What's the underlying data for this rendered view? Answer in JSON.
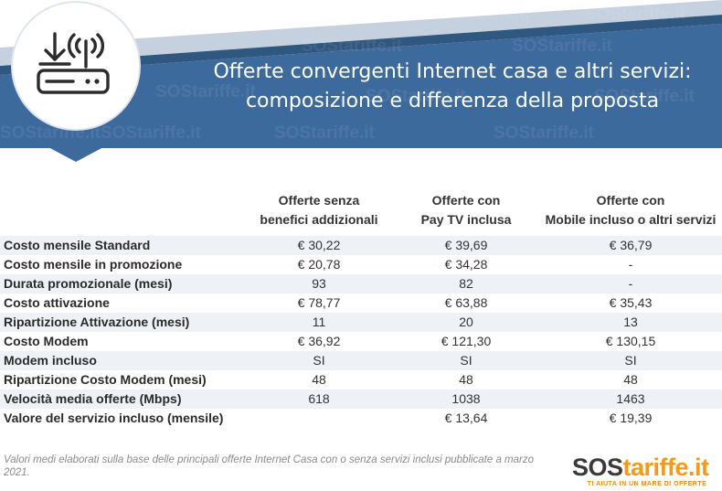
{
  "header": {
    "title_line1": "Offerte convergenti Internet casa e altri servizi:",
    "title_line2": "composizione e differenza della proposta",
    "watermark": "SOStariffe.it",
    "icon": "router-download-icon",
    "colors": {
      "banner": "#3d6a9c",
      "stripe_light": "#c5d1de",
      "stripe_dark": "#30577f"
    }
  },
  "columns": [
    {
      "line1": "Offerte senza",
      "line2": "benefici addizionali"
    },
    {
      "line1": "Offerte con",
      "line2": "Pay TV inclusa"
    },
    {
      "line1": "Offerte  con",
      "line2": "Mobile incluso o altri servizi"
    }
  ],
  "rows": [
    {
      "label": "Costo mensile Standard",
      "values": [
        "€ 30,22",
        "€ 39,69",
        "€ 36,79"
      ]
    },
    {
      "label": "Costo mensile in promozione",
      "values": [
        "€ 20,78",
        "€ 34,28",
        "-"
      ]
    },
    {
      "label": "Durata promozionale (mesi)",
      "values": [
        "93",
        "82",
        "-"
      ]
    },
    {
      "label": "Costo attivazione",
      "values": [
        "€ 78,77",
        "€ 63,88",
        "€ 35,43"
      ]
    },
    {
      "label": "Ripartizione Attivazione (mesi)",
      "values": [
        "11",
        "20",
        "13"
      ]
    },
    {
      "label": "Costo Modem",
      "values": [
        "€ 36,92",
        "€ 121,30",
        "€ 130,15"
      ]
    },
    {
      "label": "Modem incluso",
      "values": [
        "SI",
        "SI",
        "SI"
      ]
    },
    {
      "label": "Ripartizione Costo Modem (mesi)",
      "values": [
        "48",
        "48",
        "48"
      ]
    },
    {
      "label": "Velocità media offerte (Mbps)",
      "values": [
        "618",
        "1038",
        "1463"
      ]
    },
    {
      "label": "Valore del servizio incluso (mensile)",
      "values": [
        "",
        "€ 13,64",
        "€ 19,39"
      ]
    }
  ],
  "footnote": "Valori medi elaborati sulla base delle principali offerte Internet Casa con o senza servizi inclusi pubblicate a marzo 2021.",
  "logo": {
    "sos": "SOS",
    "tariffe": "tariffe.it",
    "tagline": "TI AIUTA IN UN MARE DI OFFERTE"
  }
}
